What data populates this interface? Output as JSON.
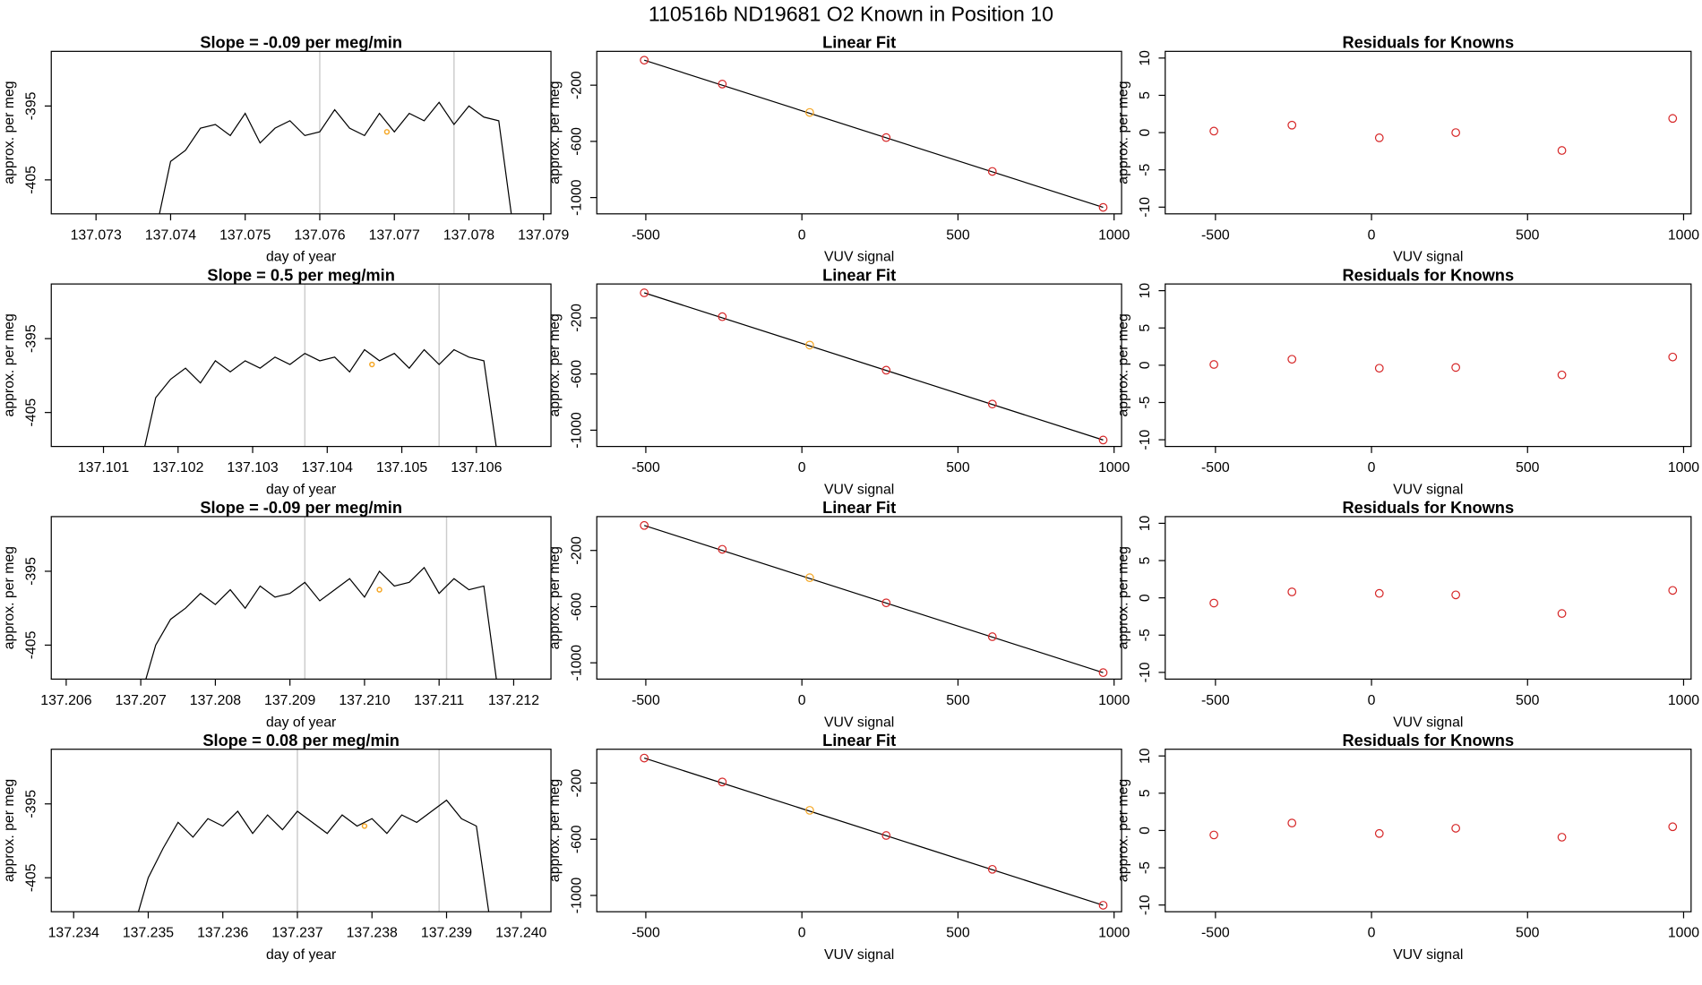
{
  "title": "110516b     ND19681    O2 Known in Position  10",
  "chart_data": [
    {
      "type": "line",
      "title": "Slope =  -0.09  per meg/min",
      "xlabel": "day of year",
      "ylabel": "approx. per meg",
      "x": [
        137.0738,
        137.074,
        137.0742,
        137.0744,
        137.0746,
        137.0748,
        137.075,
        137.0752,
        137.0754,
        137.0756,
        137.0758,
        137.076,
        137.0762,
        137.0764,
        137.0766,
        137.0768,
        137.077,
        137.0772,
        137.0774,
        137.0776,
        137.0778,
        137.078,
        137.0782,
        137.0784,
        137.0786
      ],
      "series": [
        {
          "color": "#000000",
          "values": [
            -412,
            -402.5,
            -401,
            -398,
            -397.5,
            -399,
            -396,
            -400,
            -398,
            -397,
            -399,
            -398.5,
            -395.5,
            -398,
            -399,
            -396,
            -398.5,
            -396,
            -397,
            -394.5,
            -397.5,
            -395,
            -396.5,
            -397,
            -412
          ]
        }
      ],
      "xlim": [
        137.0724,
        137.0791
      ],
      "ylim": [
        -409.6,
        -387.6
      ],
      "xticks": [
        137.073,
        137.074,
        137.075,
        137.076,
        137.077,
        137.078,
        137.079
      ],
      "yticks": [
        -395,
        -405
      ],
      "vlines": [
        137.076,
        137.0778
      ],
      "vline_color": "#cccccc",
      "highlight": {
        "x": 137.0769,
        "y": -398.5,
        "color": "#f5a623"
      }
    },
    {
      "type": "scatter",
      "title": "Linear Fit",
      "xlabel": "VUV signal",
      "ylabel": "approx. per meg",
      "x": [
        -505,
        -255,
        25,
        270,
        610,
        965
      ],
      "series": [
        {
          "values": [
            -22,
            -192,
            -394,
            -573,
            -814,
            -1070
          ],
          "point_colors": [
            "#d62728",
            "#d62728",
            "#f5a623",
            "#d62728",
            "#d62728",
            "#d62728"
          ]
        }
      ],
      "fit": {
        "x": [
          -505,
          965
        ],
        "y": [
          -22,
          -1070
        ],
        "color": "#000000"
      },
      "xlim": [
        -657,
        1024
      ],
      "ylim": [
        -1116,
        41
      ],
      "xticks": [
        -500,
        0,
        500,
        1000
      ],
      "yticks": [
        -200,
        -600,
        -1000
      ]
    },
    {
      "type": "scatter",
      "title": "Residuals for Knowns",
      "xlabel": "VUV signal",
      "ylabel": "approx. per meg",
      "x": [
        -505,
        -255,
        25,
        270,
        610,
        965
      ],
      "series": [
        {
          "color": "#d62728",
          "values": [
            0.2,
            1.0,
            -0.7,
            0,
            -2.4,
            1.9
          ]
        }
      ],
      "xlim": [
        -661,
        1024
      ],
      "ylim": [
        -10.9,
        10.9
      ],
      "xticks": [
        -500,
        0,
        500,
        1000
      ],
      "yticks": [
        -10,
        -5,
        0,
        5,
        10
      ]
    },
    {
      "type": "line",
      "title": "Slope =  0.5  per meg/min",
      "xlabel": "day of year",
      "ylabel": "approx. per meg",
      "x": [
        137.1015,
        137.1017,
        137.1019,
        137.1021,
        137.1023,
        137.1025,
        137.1027,
        137.1029,
        137.1031,
        137.1033,
        137.1035,
        137.1037,
        137.1039,
        137.1041,
        137.1043,
        137.1045,
        137.1047,
        137.1049,
        137.1051,
        137.1053,
        137.1055,
        137.1057,
        137.1059,
        137.1061,
        137.1063
      ],
      "series": [
        {
          "color": "#000000",
          "values": [
            -412,
            -403,
            -400.5,
            -399,
            -401,
            -398,
            -399.5,
            -398,
            -399,
            -397.5,
            -398.5,
            -397,
            -398,
            -397.5,
            -399.5,
            -396.5,
            -398,
            -397,
            -399,
            -396.5,
            -398.5,
            -396.5,
            -397.5,
            -398,
            -412
          ]
        }
      ],
      "xlim": [
        137.1003,
        137.107
      ],
      "ylim": [
        -409.6,
        -387.6
      ],
      "xticks": [
        137.101,
        137.102,
        137.103,
        137.104,
        137.105,
        137.106
      ],
      "yticks": [
        -395,
        -405
      ],
      "vlines": [
        137.1037,
        137.1055
      ],
      "vline_color": "#cccccc",
      "highlight": {
        "x": 137.1046,
        "y": -398.5,
        "color": "#f5a623"
      }
    },
    {
      "type": "scatter",
      "title": "Linear Fit",
      "xlabel": "VUV signal",
      "ylabel": "approx. per meg",
      "x": [
        -505,
        -255,
        25,
        270,
        610,
        965
      ],
      "series": [
        {
          "values": [
            -22,
            -192,
            -394,
            -573,
            -814,
            -1070
          ],
          "point_colors": [
            "#d62728",
            "#d62728",
            "#f5a623",
            "#d62728",
            "#d62728",
            "#d62728"
          ]
        }
      ],
      "fit": {
        "x": [
          -505,
          965
        ],
        "y": [
          -22,
          -1070
        ],
        "color": "#000000"
      },
      "xlim": [
        -657,
        1024
      ],
      "ylim": [
        -1116,
        41
      ],
      "xticks": [
        -500,
        0,
        500,
        1000
      ],
      "yticks": [
        -200,
        -600,
        -1000
      ]
    },
    {
      "type": "scatter",
      "title": "Residuals for Knowns",
      "xlabel": "VUV signal",
      "ylabel": "approx. per meg",
      "x": [
        -505,
        -255,
        25,
        270,
        610,
        965
      ],
      "series": [
        {
          "color": "#d62728",
          "values": [
            0.1,
            0.8,
            -0.4,
            -0.3,
            -1.3,
            1.1
          ]
        }
      ],
      "xlim": [
        -661,
        1024
      ],
      "ylim": [
        -10.9,
        10.9
      ],
      "xticks": [
        -500,
        0,
        500,
        1000
      ],
      "yticks": [
        -10,
        -5,
        0,
        5,
        10
      ]
    },
    {
      "type": "line",
      "title": "Slope =  -0.09  per meg/min",
      "xlabel": "day of year",
      "ylabel": "approx. per meg",
      "x": [
        137.207,
        137.2072,
        137.2074,
        137.2076,
        137.2078,
        137.208,
        137.2082,
        137.2084,
        137.2086,
        137.2088,
        137.209,
        137.2092,
        137.2094,
        137.2096,
        137.2098,
        137.21,
        137.2102,
        137.2104,
        137.2106,
        137.2108,
        137.211,
        137.2112,
        137.2114,
        137.2116,
        137.2118
      ],
      "series": [
        {
          "color": "#000000",
          "values": [
            -412,
            -405,
            -401.5,
            -400,
            -398,
            -399.5,
            -397.5,
            -400,
            -397,
            -398.5,
            -398,
            -396.5,
            -399,
            -397.5,
            -396,
            -398.5,
            -395,
            -397,
            -396.5,
            -394.5,
            -398,
            -396,
            -397.5,
            -397,
            -412
          ]
        }
      ],
      "xlim": [
        137.2058,
        137.2125
      ],
      "ylim": [
        -409.6,
        -387.6
      ],
      "xticks": [
        137.206,
        137.207,
        137.208,
        137.209,
        {
          "value": 137.21,
          "label": "137.210"
        },
        137.211,
        137.212
      ],
      "yticks": [
        -395,
        -405
      ],
      "vlines": [
        137.2092,
        137.2111
      ],
      "vline_color": "#cccccc",
      "highlight": {
        "x": 137.2102,
        "y": -397.5,
        "color": "#f5a623"
      }
    },
    {
      "type": "scatter",
      "title": "Linear Fit",
      "xlabel": "VUV signal",
      "ylabel": "approx. per meg",
      "x": [
        -505,
        -255,
        25,
        270,
        610,
        965
      ],
      "series": [
        {
          "values": [
            -22,
            -192,
            -394,
            -573,
            -814,
            -1070
          ],
          "point_colors": [
            "#d62728",
            "#d62728",
            "#f5a623",
            "#d62728",
            "#d62728",
            "#d62728"
          ]
        }
      ],
      "fit": {
        "x": [
          -505,
          965
        ],
        "y": [
          -22,
          -1070
        ],
        "color": "#000000"
      },
      "xlim": [
        -657,
        1024
      ],
      "ylim": [
        -1116,
        41
      ],
      "xticks": [
        -500,
        0,
        500,
        1000
      ],
      "yticks": [
        -200,
        -600,
        -1000
      ]
    },
    {
      "type": "scatter",
      "title": "Residuals for Knowns",
      "xlabel": "VUV signal",
      "ylabel": "approx. per meg",
      "x": [
        -505,
        -255,
        25,
        270,
        610,
        965
      ],
      "series": [
        {
          "color": "#d62728",
          "values": [
            -0.7,
            0.8,
            0.6,
            0.4,
            -2.1,
            1.0
          ]
        }
      ],
      "xlim": [
        -661,
        1024
      ],
      "ylim": [
        -10.9,
        10.9
      ],
      "xticks": [
        -500,
        0,
        500,
        1000
      ],
      "yticks": [
        -10,
        -5,
        0,
        5,
        10
      ]
    },
    {
      "type": "line",
      "title": "Slope =  0.08  per meg/min",
      "xlabel": "day of year",
      "ylabel": "approx. per meg",
      "x": [
        137.2348,
        137.235,
        137.2352,
        137.2354,
        137.2356,
        137.2358,
        137.236,
        137.2362,
        137.2364,
        137.2366,
        137.2368,
        137.237,
        137.2372,
        137.2374,
        137.2376,
        137.2378,
        137.238,
        137.2382,
        137.2384,
        137.2386,
        137.2388,
        137.239,
        137.2392,
        137.2394,
        137.2396
      ],
      "series": [
        {
          "color": "#000000",
          "values": [
            -412,
            -405,
            -401,
            -397.5,
            -399.5,
            -397,
            -398,
            -396,
            -399,
            -396.5,
            -398.5,
            -396,
            -397.5,
            -399,
            -396.5,
            -398,
            -397,
            -399,
            -396.5,
            -397.5,
            -396,
            -394.5,
            -397,
            -398,
            -412
          ]
        }
      ],
      "xlim": [
        137.2337,
        137.2404
      ],
      "ylim": [
        -409.6,
        -387.6
      ],
      "xticks": [
        137.234,
        137.235,
        137.236,
        137.237,
        137.238,
        137.239,
        {
          "value": 137.24,
          "label": "137.240"
        }
      ],
      "yticks": [
        -395,
        -405
      ],
      "vlines": [
        137.237,
        137.2389
      ],
      "vline_color": "#cccccc",
      "highlight": {
        "x": 137.2379,
        "y": -398,
        "color": "#f5a623"
      }
    },
    {
      "type": "scatter",
      "title": "Linear Fit",
      "xlabel": "VUV signal",
      "ylabel": "approx. per meg",
      "x": [
        -505,
        -255,
        25,
        270,
        610,
        965
      ],
      "series": [
        {
          "values": [
            -22,
            -192,
            -394,
            -573,
            -814,
            -1070
          ],
          "point_colors": [
            "#d62728",
            "#d62728",
            "#f5a623",
            "#d62728",
            "#d62728",
            "#d62728"
          ]
        }
      ],
      "fit": {
        "x": [
          -505,
          965
        ],
        "y": [
          -22,
          -1070
        ],
        "color": "#000000"
      },
      "xlim": [
        -657,
        1024
      ],
      "ylim": [
        -1116,
        41
      ],
      "xticks": [
        -500,
        0,
        500,
        1000
      ],
      "yticks": [
        -200,
        -600,
        -1000
      ]
    },
    {
      "type": "scatter",
      "title": "Residuals for Knowns",
      "xlabel": "VUV signal",
      "ylabel": "approx. per meg",
      "x": [
        -505,
        -255,
        25,
        270,
        610,
        965
      ],
      "series": [
        {
          "color": "#d62728",
          "values": [
            -0.6,
            1.0,
            -0.4,
            0.3,
            -0.9,
            0.5
          ]
        }
      ],
      "xlim": [
        -661,
        1024
      ],
      "ylim": [
        -10.9,
        10.9
      ],
      "xticks": [
        -500,
        0,
        500,
        1000
      ],
      "yticks": [
        -10,
        -5,
        0,
        5,
        10
      ]
    }
  ]
}
